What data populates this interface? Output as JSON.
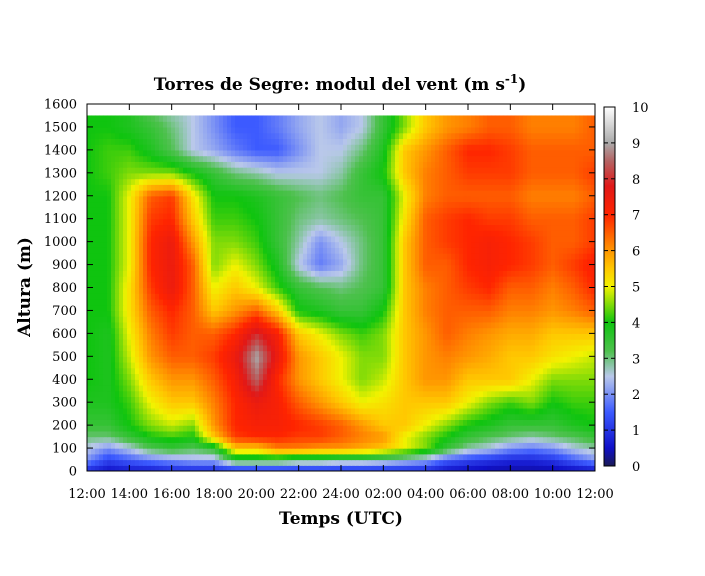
{
  "chart_data": {
    "type": "heatmap",
    "title": "Torres de Segre: modul del vent (m s",
    "title_sup": "-1",
    "title_end": ")",
    "xlabel": "Temps (UTC)",
    "ylabel": "Altura (m)",
    "x_ticks": [
      "12:00",
      "14:00",
      "16:00",
      "18:00",
      "20:00",
      "22:00",
      "24:00",
      "02:00",
      "04:00",
      "06:00",
      "08:00",
      "10:00",
      "12:00"
    ],
    "y_ticks": [
      "0",
      "100",
      "200",
      "300",
      "400",
      "500",
      "600",
      "700",
      "800",
      "900",
      "1000",
      "1100",
      "1200",
      "1300",
      "1400",
      "1500",
      "1600"
    ],
    "xlim_hours": [
      0,
      24
    ],
    "ylim": [
      0,
      1600
    ],
    "colorbar": {
      "ticks": [
        "0",
        "1",
        "2",
        "3",
        "4",
        "5",
        "6",
        "7",
        "8",
        "9",
        "10"
      ],
      "range": [
        0,
        10
      ],
      "stops": [
        {
          "v": 0,
          "color": "#1a1a55"
        },
        {
          "v": 0.5,
          "color": "#1010c8"
        },
        {
          "v": 1.5,
          "color": "#3c5aff"
        },
        {
          "v": 2.5,
          "color": "#b9c8ea"
        },
        {
          "v": 3.2,
          "color": "#4ec14e"
        },
        {
          "v": 4,
          "color": "#0fc40f"
        },
        {
          "v": 5,
          "color": "#f2f200"
        },
        {
          "v": 5.5,
          "color": "#ffc800"
        },
        {
          "v": 6,
          "color": "#ff9600"
        },
        {
          "v": 7,
          "color": "#ff2400"
        },
        {
          "v": 7.8,
          "color": "#e01818"
        },
        {
          "v": 8.5,
          "color": "#b46464"
        },
        {
          "v": 9,
          "color": "#aaaaaa"
        },
        {
          "v": 10,
          "color": "#ffffff"
        }
      ]
    },
    "data_top_height_m": 1550,
    "grid_x_hours": [
      0,
      1,
      2,
      3,
      4,
      5,
      6,
      7,
      8,
      9,
      10,
      11,
      12,
      13,
      14,
      15,
      16,
      17,
      18,
      19,
      20,
      21,
      22,
      23,
      24
    ],
    "grid_y_m": [
      0,
      50,
      100,
      150,
      200,
      300,
      400,
      500,
      600,
      700,
      800,
      900,
      1000,
      1100,
      1200,
      1300,
      1400,
      1500,
      1550
    ],
    "values": [
      [
        0.8,
        0.5,
        0.6,
        0.6,
        0.8,
        0.8,
        0.8,
        0.8,
        0.8,
        0.8,
        0.8,
        0.8,
        0.8,
        0.8,
        0.8,
        0.8,
        0.8,
        0.5,
        0.4,
        0.3,
        0.3,
        0.3,
        0.3,
        0.4,
        0.5
      ],
      [
        2.0,
        1.2,
        1.5,
        1.8,
        2.0,
        2.2,
        2.2,
        3.5,
        3.5,
        3.5,
        3.2,
        3.2,
        3.0,
        3.0,
        2.8,
        2.5,
        2.2,
        1.5,
        1.2,
        1.0,
        0.8,
        0.8,
        1.0,
        1.5,
        2.0
      ],
      [
        2.5,
        2.0,
        2.5,
        3.2,
        3.5,
        3.2,
        3.5,
        5.5,
        5.5,
        6.2,
        6.2,
        6.0,
        6.0,
        5.8,
        5.5,
        5.0,
        4.5,
        3.5,
        2.8,
        2.5,
        2.0,
        1.8,
        2.0,
        2.5,
        2.8
      ],
      [
        3.0,
        3.0,
        3.5,
        4.0,
        4.2,
        4.0,
        5.5,
        6.8,
        7.0,
        7.0,
        6.8,
        6.8,
        6.5,
        6.2,
        6.0,
        5.0,
        4.5,
        4.0,
        3.5,
        3.2,
        3.0,
        2.8,
        3.0,
        3.2,
        3.5
      ],
      [
        3.5,
        3.5,
        4.0,
        4.5,
        4.8,
        4.5,
        6.0,
        7.0,
        7.2,
        7.2,
        7.0,
        6.8,
        6.5,
        6.0,
        5.5,
        5.5,
        5.0,
        4.5,
        4.0,
        3.8,
        3.5,
        3.5,
        3.5,
        3.8,
        4.0
      ],
      [
        3.8,
        3.8,
        4.2,
        5.0,
        5.5,
        5.5,
        6.2,
        7.0,
        7.5,
        7.2,
        6.5,
        6.0,
        5.5,
        5.0,
        5.2,
        5.5,
        5.5,
        5.5,
        5.0,
        4.5,
        4.2,
        4.5,
        4.0,
        4.2,
        4.2
      ],
      [
        4.0,
        3.8,
        4.5,
        5.5,
        6.0,
        6.0,
        6.5,
        7.2,
        8.5,
        7.0,
        6.0,
        5.5,
        5.0,
        4.5,
        4.8,
        5.5,
        6.0,
        6.0,
        5.5,
        5.5,
        5.5,
        5.0,
        4.5,
        4.5,
        4.5
      ],
      [
        4.0,
        3.8,
        4.8,
        6.0,
        6.5,
        6.5,
        6.8,
        7.5,
        9.0,
        7.5,
        6.0,
        5.5,
        5.0,
        4.5,
        4.5,
        5.5,
        6.0,
        6.2,
        6.0,
        5.8,
        5.5,
        5.5,
        5.2,
        5.0,
        4.8
      ],
      [
        4.0,
        3.8,
        5.0,
        6.2,
        6.8,
        6.5,
        6.5,
        7.0,
        8.0,
        7.2,
        5.5,
        5.0,
        4.5,
        4.2,
        4.5,
        5.5,
        6.0,
        6.5,
        6.2,
        6.0,
        5.8,
        5.8,
        5.5,
        5.5,
        5.5
      ],
      [
        4.0,
        4.0,
        5.2,
        6.5,
        7.0,
        6.5,
        5.5,
        6.0,
        6.5,
        5.5,
        4.0,
        3.8,
        3.5,
        3.5,
        4.0,
        5.5,
        6.2,
        6.5,
        6.5,
        6.5,
        6.2,
        6.2,
        6.0,
        6.2,
        6.5
      ],
      [
        4.0,
        4.0,
        5.2,
        6.8,
        7.5,
        6.5,
        5.0,
        5.5,
        5.0,
        4.2,
        3.5,
        3.2,
        3.0,
        3.2,
        3.5,
        5.5,
        6.2,
        6.5,
        6.8,
        7.0,
        6.5,
        6.5,
        6.2,
        6.5,
        7.0
      ],
      [
        4.0,
        4.0,
        5.0,
        7.0,
        7.5,
        6.5,
        4.5,
        5.0,
        4.5,
        3.8,
        2.5,
        1.8,
        2.2,
        3.0,
        3.5,
        5.5,
        6.5,
        6.5,
        7.0,
        7.2,
        7.0,
        6.8,
        6.5,
        6.8,
        7.2
      ],
      [
        4.0,
        4.0,
        5.0,
        7.0,
        7.5,
        6.0,
        4.5,
        4.5,
        4.2,
        3.5,
        2.8,
        2.0,
        2.5,
        3.0,
        3.5,
        5.5,
        6.5,
        6.8,
        7.0,
        7.2,
        7.0,
        6.8,
        6.5,
        6.5,
        6.8
      ],
      [
        4.0,
        4.0,
        5.0,
        6.8,
        7.0,
        5.5,
        4.2,
        4.2,
        4.0,
        3.5,
        3.0,
        2.8,
        3.0,
        3.2,
        3.5,
        5.2,
        6.5,
        6.8,
        7.0,
        6.8,
        6.8,
        6.5,
        6.5,
        6.5,
        6.8
      ],
      [
        4.0,
        4.0,
        5.0,
        6.5,
        6.8,
        5.2,
        4.0,
        4.0,
        3.8,
        3.5,
        3.2,
        3.0,
        3.2,
        3.5,
        3.5,
        5.0,
        6.2,
        6.5,
        6.5,
        6.5,
        6.5,
        6.2,
        6.2,
        6.2,
        6.5
      ],
      [
        4.0,
        4.2,
        4.5,
        4.5,
        4.5,
        4.0,
        3.5,
        3.0,
        2.8,
        2.5,
        2.5,
        2.5,
        2.8,
        3.5,
        4.0,
        5.5,
        6.2,
        6.5,
        6.8,
        6.8,
        6.8,
        6.5,
        6.5,
        6.5,
        6.8
      ],
      [
        4.0,
        4.2,
        4.2,
        3.8,
        3.2,
        2.5,
        2.2,
        1.8,
        1.5,
        1.5,
        2.0,
        2.5,
        2.5,
        3.0,
        3.8,
        5.5,
        6.0,
        6.5,
        7.0,
        7.0,
        6.8,
        6.5,
        6.5,
        6.5,
        6.5
      ],
      [
        4.0,
        4.0,
        3.8,
        3.5,
        3.0,
        2.5,
        2.0,
        1.5,
        1.5,
        1.8,
        2.2,
        2.5,
        2.2,
        2.5,
        3.5,
        4.5,
        5.5,
        6.0,
        6.2,
        6.5,
        6.5,
        6.2,
        6.2,
        6.2,
        6.5
      ],
      [
        4.0,
        4.0,
        3.8,
        3.2,
        2.8,
        2.5,
        2.0,
        1.5,
        1.5,
        1.8,
        2.2,
        2.5,
        2.2,
        2.5,
        3.5,
        4.5,
        5.5,
        6.0,
        6.2,
        6.5,
        6.5,
        6.2,
        6.2,
        6.2,
        6.5
      ]
    ]
  }
}
